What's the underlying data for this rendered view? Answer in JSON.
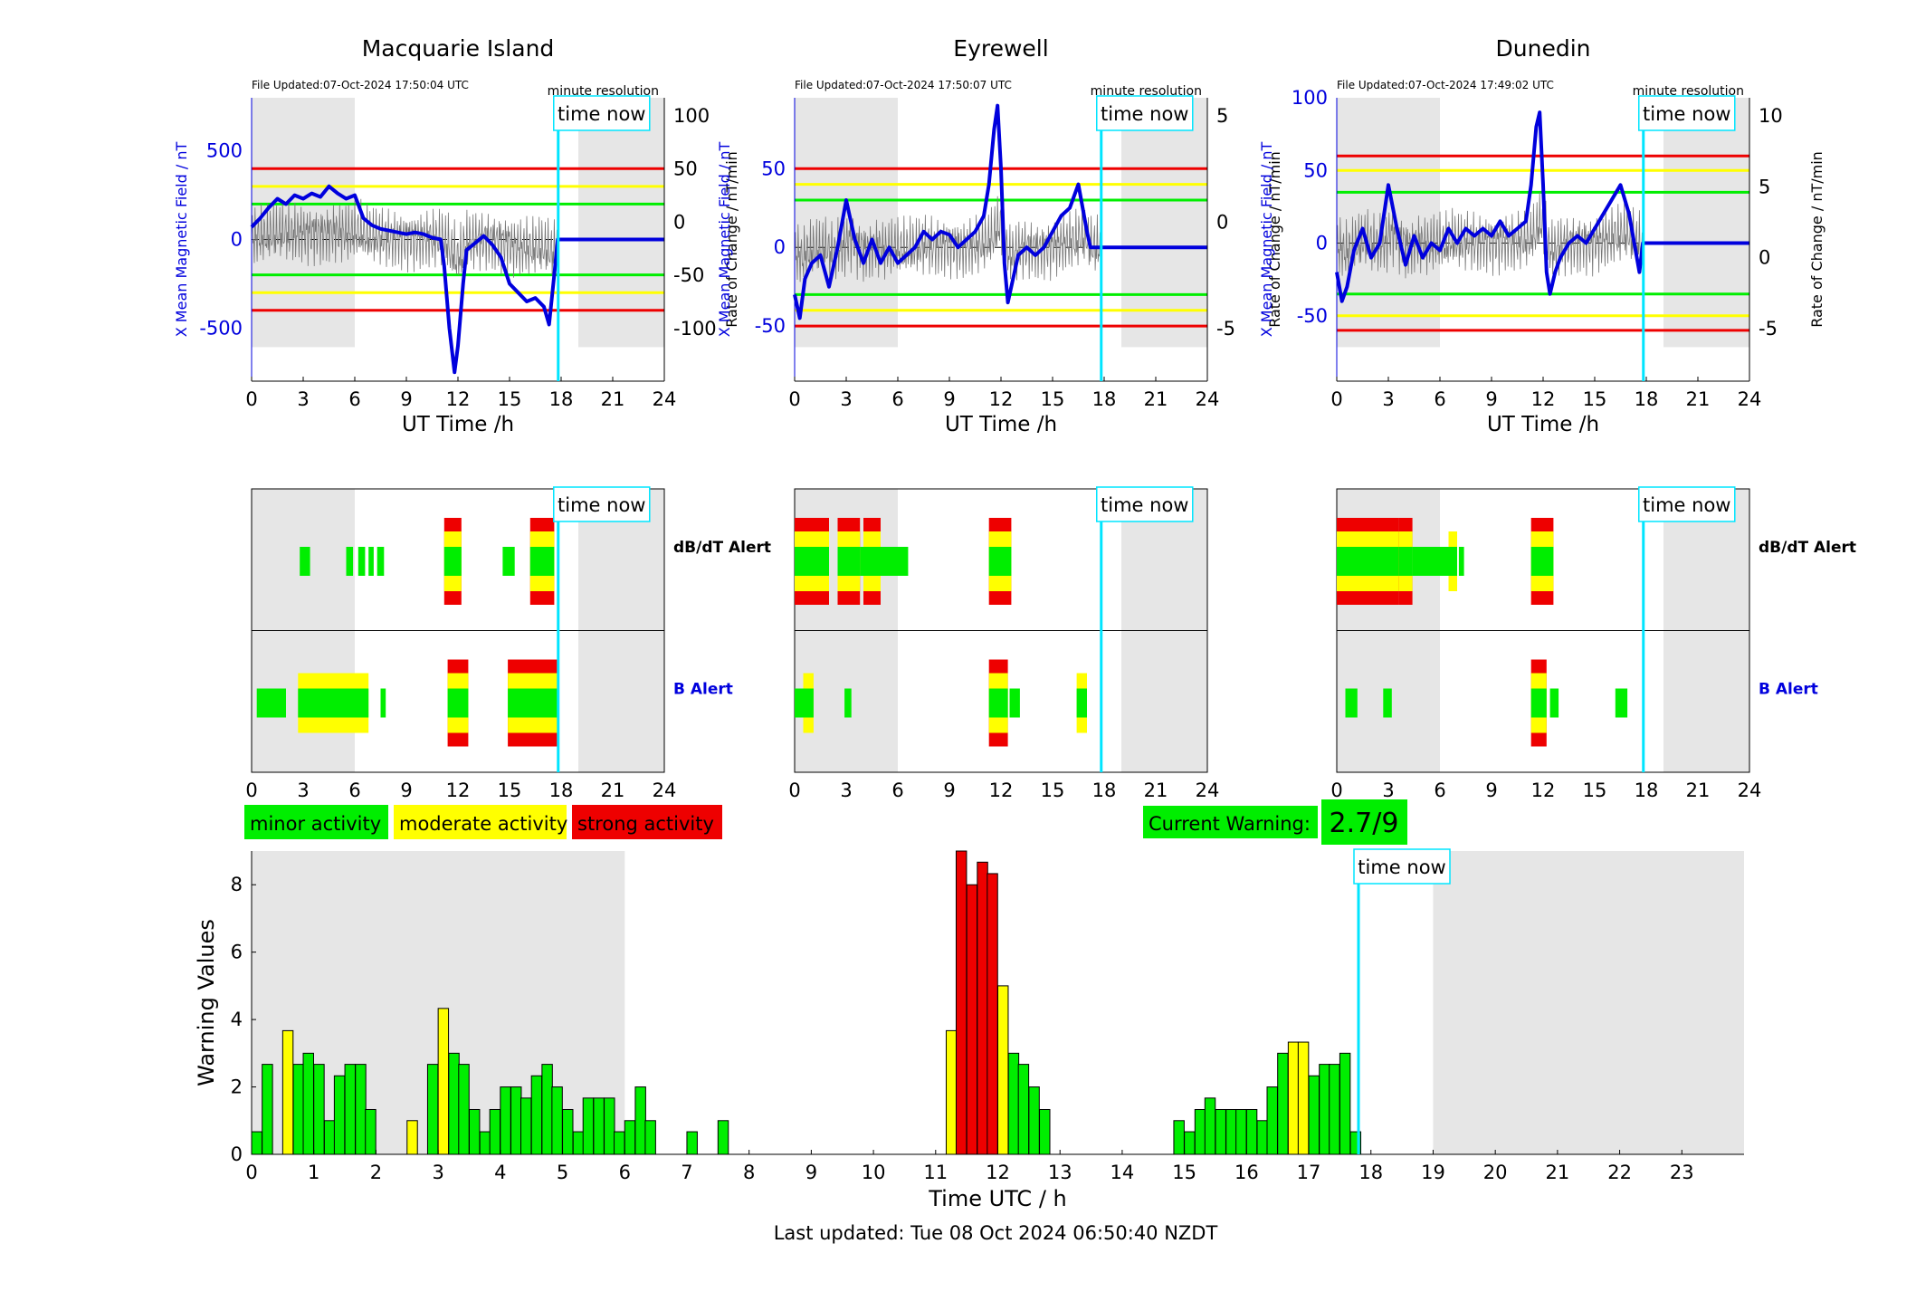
{
  "stations": [
    {
      "name": "Macquarie Island",
      "file_updated": "File Updated:07-Oct-2024 17:50:04 UTC",
      "resolution": "minute resolution",
      "x_label": "UT Time /h",
      "y_left_label": "X Mean Magnetic Field / nT",
      "y_right_label": "Rate of Change / nT/min",
      "y_left_ticks": [
        "500",
        "0",
        "-500"
      ],
      "y_right_ticks": [
        "100",
        "50",
        "0",
        "-50",
        "-100"
      ],
      "y_left_range": [
        -800,
        800
      ],
      "y_left_tick_values": [
        500,
        0,
        -500
      ],
      "thresholds": {
        "red": 400,
        "yellow": 300,
        "green": 200
      },
      "field_trace": [
        [
          0,
          70
        ],
        [
          0.5,
          120
        ],
        [
          1,
          180
        ],
        [
          1.5,
          230
        ],
        [
          2,
          200
        ],
        [
          2.5,
          250
        ],
        [
          3,
          230
        ],
        [
          3.5,
          260
        ],
        [
          4,
          240
        ],
        [
          4.5,
          300
        ],
        [
          5,
          260
        ],
        [
          5.5,
          230
        ],
        [
          6,
          250
        ],
        [
          6.5,
          120
        ],
        [
          7,
          80
        ],
        [
          7.5,
          60
        ],
        [
          8,
          50
        ],
        [
          8.5,
          40
        ],
        [
          9,
          30
        ],
        [
          9.5,
          40
        ],
        [
          10,
          30
        ],
        [
          10.5,
          10
        ],
        [
          11,
          0
        ],
        [
          11.2,
          -150
        ],
        [
          11.5,
          -500
        ],
        [
          11.8,
          -750
        ],
        [
          12,
          -600
        ],
        [
          12.3,
          -250
        ],
        [
          12.5,
          -60
        ],
        [
          13,
          -20
        ],
        [
          13.5,
          20
        ],
        [
          14,
          -30
        ],
        [
          14.5,
          -100
        ],
        [
          15,
          -250
        ],
        [
          15.5,
          -300
        ],
        [
          16,
          -350
        ],
        [
          16.5,
          -330
        ],
        [
          17,
          -380
        ],
        [
          17.3,
          -480
        ],
        [
          17.6,
          -200
        ],
        [
          17.8,
          0
        ],
        [
          24,
          0
        ]
      ],
      "activity_spans": [
        [
          0,
          6
        ],
        [
          19,
          24
        ]
      ],
      "time_now": 17.83,
      "dbdt_alerts": [
        {
          "start": 2.8,
          "end": 3.4,
          "level": 1
        },
        {
          "start": 5.5,
          "end": 5.9,
          "level": 1
        },
        {
          "start": 6.2,
          "end": 6.6,
          "level": 1
        },
        {
          "start": 6.8,
          "end": 7.1,
          "level": 1
        },
        {
          "start": 7.3,
          "end": 7.7,
          "level": 1
        },
        {
          "start": 11.2,
          "end": 12.2,
          "level": 3
        },
        {
          "start": 14.6,
          "end": 15.3,
          "level": 1
        },
        {
          "start": 16.2,
          "end": 17.6,
          "level": 3
        }
      ],
      "b_alerts": [
        {
          "start": 0.3,
          "end": 2.0,
          "level": 1
        },
        {
          "start": 2.7,
          "end": 6.8,
          "level": 2
        },
        {
          "start": 7.5,
          "end": 7.8,
          "level": 1
        },
        {
          "start": 11.4,
          "end": 12.6,
          "level": 3
        },
        {
          "start": 14.9,
          "end": 17.8,
          "level": 3
        }
      ],
      "dbdt_label": "dB/dT Alert",
      "b_label": "B Alert"
    },
    {
      "name": "Eyrewell",
      "file_updated": "File Updated:07-Oct-2024 17:50:07 UTC",
      "resolution": "minute resolution",
      "x_label": "UT Time /h",
      "y_left_label": "X Mean Magnetic Field / nT",
      "y_right_label": "Rate of Change / nT/min",
      "y_left_ticks": [
        "50",
        "0",
        "-50"
      ],
      "y_right_ticks": [
        "5",
        "0",
        "-5"
      ],
      "y_left_range": [
        -85,
        95
      ],
      "y_left_tick_values": [
        50,
        0,
        -50
      ],
      "thresholds": {
        "red": 50,
        "yellow": 40,
        "green": 30
      },
      "field_trace": [
        [
          0,
          -30
        ],
        [
          0.3,
          -45
        ],
        [
          0.6,
          -20
        ],
        [
          1,
          -10
        ],
        [
          1.5,
          -5
        ],
        [
          2,
          -25
        ],
        [
          2.5,
          0
        ],
        [
          3,
          30
        ],
        [
          3.5,
          5
        ],
        [
          4,
          -10
        ],
        [
          4.5,
          5
        ],
        [
          5,
          -10
        ],
        [
          5.5,
          0
        ],
        [
          6,
          -10
        ],
        [
          6.5,
          -5
        ],
        [
          7,
          0
        ],
        [
          7.5,
          10
        ],
        [
          8,
          5
        ],
        [
          8.5,
          10
        ],
        [
          9,
          8
        ],
        [
          9.5,
          0
        ],
        [
          10,
          5
        ],
        [
          10.5,
          10
        ],
        [
          11,
          20
        ],
        [
          11.3,
          40
        ],
        [
          11.6,
          75
        ],
        [
          11.8,
          90
        ],
        [
          12,
          50
        ],
        [
          12.2,
          -10
        ],
        [
          12.4,
          -35
        ],
        [
          12.7,
          -20
        ],
        [
          13,
          -5
        ],
        [
          13.5,
          0
        ],
        [
          14,
          -5
        ],
        [
          14.5,
          0
        ],
        [
          15,
          10
        ],
        [
          15.5,
          20
        ],
        [
          16,
          25
        ],
        [
          16.5,
          40
        ],
        [
          17,
          10
        ],
        [
          17.2,
          0
        ],
        [
          24,
          0
        ]
      ],
      "activity_spans": [
        [
          0,
          6
        ],
        [
          19,
          24
        ]
      ],
      "time_now": 17.83,
      "dbdt_alerts": [
        {
          "start": 0,
          "end": 2.0,
          "level": 3
        },
        {
          "start": 2.5,
          "end": 3.8,
          "level": 3
        },
        {
          "start": 3.8,
          "end": 4.2,
          "level": 1
        },
        {
          "start": 4.0,
          "end": 5.0,
          "level": 3
        },
        {
          "start": 5.0,
          "end": 6.6,
          "level": 1
        },
        {
          "start": 11.3,
          "end": 12.6,
          "level": 3
        }
      ],
      "b_alerts": [
        {
          "start": 0,
          "end": 0.5,
          "level": 1
        },
        {
          "start": 0.5,
          "end": 1.1,
          "level": 2
        },
        {
          "start": 2.9,
          "end": 3.3,
          "level": 1
        },
        {
          "start": 11.3,
          "end": 12.4,
          "level": 3
        },
        {
          "start": 12.5,
          "end": 13.1,
          "level": 1
        },
        {
          "start": 16.4,
          "end": 17.0,
          "level": 2
        }
      ],
      "dbdt_label": "dB/dT Alert",
      "b_label": "B Alert"
    },
    {
      "name": "Dunedin",
      "file_updated": "File Updated:07-Oct-2024 17:49:02 UTC",
      "resolution": "minute resolution",
      "x_label": "UT Time /h",
      "y_left_label": "X Mean Magnetic Field / nT",
      "y_right_label": "Rate of Change / nT/min",
      "y_left_ticks": [
        "100",
        "50",
        "0",
        "-50"
      ],
      "y_right_ticks": [
        "10",
        "5",
        "0",
        "-5"
      ],
      "y_left_range": [
        -95,
        100
      ],
      "y_left_tick_values": [
        100,
        50,
        0,
        -50
      ],
      "thresholds": {
        "red": 60,
        "yellow": 50,
        "green": 35
      },
      "field_trace": [
        [
          0,
          -20
        ],
        [
          0.3,
          -40
        ],
        [
          0.6,
          -30
        ],
        [
          1,
          -5
        ],
        [
          1.5,
          10
        ],
        [
          2,
          -10
        ],
        [
          2.5,
          0
        ],
        [
          3,
          40
        ],
        [
          3.5,
          10
        ],
        [
          4,
          -15
        ],
        [
          4.5,
          5
        ],
        [
          5,
          -10
        ],
        [
          5.5,
          0
        ],
        [
          6,
          -5
        ],
        [
          6.5,
          10
        ],
        [
          7,
          0
        ],
        [
          7.5,
          10
        ],
        [
          8,
          5
        ],
        [
          8.5,
          10
        ],
        [
          9,
          5
        ],
        [
          9.5,
          15
        ],
        [
          10,
          5
        ],
        [
          10.5,
          10
        ],
        [
          11,
          15
        ],
        [
          11.3,
          40
        ],
        [
          11.6,
          80
        ],
        [
          11.8,
          90
        ],
        [
          12,
          40
        ],
        [
          12.2,
          -20
        ],
        [
          12.4,
          -35
        ],
        [
          12.7,
          -20
        ],
        [
          13,
          -10
        ],
        [
          13.5,
          0
        ],
        [
          14,
          5
        ],
        [
          14.5,
          0
        ],
        [
          15,
          10
        ],
        [
          15.5,
          20
        ],
        [
          16,
          30
        ],
        [
          16.5,
          40
        ],
        [
          17,
          20
        ],
        [
          17.3,
          0
        ],
        [
          17.6,
          -20
        ],
        [
          17.8,
          0
        ],
        [
          24,
          0
        ]
      ],
      "activity_spans": [
        [
          0,
          6
        ],
        [
          19,
          24
        ]
      ],
      "time_now": 17.83,
      "dbdt_alerts": [
        {
          "start": 0,
          "end": 2.5,
          "level": 3
        },
        {
          "start": 2.5,
          "end": 3.6,
          "level": 3
        },
        {
          "start": 3.6,
          "end": 4.4,
          "level": 3
        },
        {
          "start": 4.4,
          "end": 6.5,
          "level": 1
        },
        {
          "start": 6.5,
          "end": 7.0,
          "level": 2
        },
        {
          "start": 7.1,
          "end": 7.4,
          "level": 1
        },
        {
          "start": 11.3,
          "end": 12.6,
          "level": 3
        }
      ],
      "b_alerts": [
        {
          "start": 0.5,
          "end": 1.2,
          "level": 1
        },
        {
          "start": 2.7,
          "end": 3.2,
          "level": 1
        },
        {
          "start": 11.3,
          "end": 12.2,
          "level": 3
        },
        {
          "start": 12.4,
          "end": 12.9,
          "level": 1
        },
        {
          "start": 16.2,
          "end": 16.9,
          "level": 1
        }
      ],
      "dbdt_label": "dB/dT Alert",
      "b_label": "B Alert"
    }
  ],
  "time_now_label": "time now",
  "x_ticks_small": [
    "0",
    "3",
    "6",
    "9",
    "12",
    "15",
    "18",
    "21",
    "24"
  ],
  "legend": [
    {
      "label": "minor activity",
      "color": "#00ee00"
    },
    {
      "label": "moderate activity",
      "color": "#ffff00"
    },
    {
      "label": "strong activity",
      "color": "#ee0000"
    }
  ],
  "current_warning": {
    "label": "Current Warning:",
    "value": "2.7/9",
    "color": "#00ee00"
  },
  "chart_data": {
    "type": "bar",
    "title": "",
    "xlabel": "Time UTC / h",
    "ylabel": "Warning Values",
    "xlim": [
      0,
      24
    ],
    "ylim": [
      0,
      9
    ],
    "x_ticks": [
      "0",
      "1",
      "2",
      "3",
      "4",
      "5",
      "6",
      "7",
      "8",
      "9",
      "10",
      "11",
      "12",
      "13",
      "14",
      "15",
      "16",
      "17",
      "18",
      "19",
      "20",
      "21",
      "22",
      "23"
    ],
    "y_ticks": [
      "0",
      "2",
      "4",
      "6",
      "8"
    ],
    "shaded_spans": [
      [
        0,
        6
      ],
      [
        19,
        24
      ]
    ],
    "time_now": 17.8,
    "bin_width_h": 0.1667,
    "bins": [
      {
        "t": 0.0,
        "v": 0.67,
        "c": "g"
      },
      {
        "t": 0.17,
        "v": 2.67,
        "c": "g"
      },
      {
        "t": 0.5,
        "v": 3.67,
        "c": "y"
      },
      {
        "t": 0.67,
        "v": 2.67,
        "c": "g"
      },
      {
        "t": 0.83,
        "v": 3.0,
        "c": "g"
      },
      {
        "t": 1.0,
        "v": 2.67,
        "c": "g"
      },
      {
        "t": 1.17,
        "v": 1.0,
        "c": "g"
      },
      {
        "t": 1.33,
        "v": 2.33,
        "c": "g"
      },
      {
        "t": 1.5,
        "v": 2.67,
        "c": "g"
      },
      {
        "t": 1.67,
        "v": 2.67,
        "c": "g"
      },
      {
        "t": 1.83,
        "v": 1.33,
        "c": "g"
      },
      {
        "t": 2.5,
        "v": 1.0,
        "c": "y"
      },
      {
        "t": 2.83,
        "v": 2.67,
        "c": "g"
      },
      {
        "t": 3.0,
        "v": 4.33,
        "c": "y"
      },
      {
        "t": 3.17,
        "v": 3.0,
        "c": "g"
      },
      {
        "t": 3.33,
        "v": 2.67,
        "c": "g"
      },
      {
        "t": 3.5,
        "v": 1.33,
        "c": "g"
      },
      {
        "t": 3.67,
        "v": 0.67,
        "c": "g"
      },
      {
        "t": 3.83,
        "v": 1.33,
        "c": "g"
      },
      {
        "t": 4.0,
        "v": 2.0,
        "c": "g"
      },
      {
        "t": 4.17,
        "v": 2.0,
        "c": "g"
      },
      {
        "t": 4.33,
        "v": 1.67,
        "c": "g"
      },
      {
        "t": 4.5,
        "v": 2.33,
        "c": "g"
      },
      {
        "t": 4.67,
        "v": 2.67,
        "c": "g"
      },
      {
        "t": 4.83,
        "v": 2.0,
        "c": "g"
      },
      {
        "t": 5.0,
        "v": 1.33,
        "c": "g"
      },
      {
        "t": 5.17,
        "v": 0.67,
        "c": "g"
      },
      {
        "t": 5.33,
        "v": 1.67,
        "c": "g"
      },
      {
        "t": 5.5,
        "v": 1.67,
        "c": "g"
      },
      {
        "t": 5.67,
        "v": 1.67,
        "c": "g"
      },
      {
        "t": 5.83,
        "v": 0.67,
        "c": "g"
      },
      {
        "t": 6.0,
        "v": 1.0,
        "c": "g"
      },
      {
        "t": 6.17,
        "v": 2.0,
        "c": "g"
      },
      {
        "t": 6.33,
        "v": 1.0,
        "c": "g"
      },
      {
        "t": 7.0,
        "v": 0.67,
        "c": "g"
      },
      {
        "t": 7.5,
        "v": 1.0,
        "c": "g"
      },
      {
        "t": 11.17,
        "v": 3.67,
        "c": "y"
      },
      {
        "t": 11.33,
        "v": 9.0,
        "c": "r"
      },
      {
        "t": 11.5,
        "v": 8.0,
        "c": "r"
      },
      {
        "t": 11.67,
        "v": 8.67,
        "c": "r"
      },
      {
        "t": 11.83,
        "v": 8.33,
        "c": "r"
      },
      {
        "t": 12.0,
        "v": 5.0,
        "c": "y"
      },
      {
        "t": 12.17,
        "v": 3.0,
        "c": "g"
      },
      {
        "t": 12.33,
        "v": 2.67,
        "c": "g"
      },
      {
        "t": 12.5,
        "v": 2.0,
        "c": "g"
      },
      {
        "t": 12.67,
        "v": 1.33,
        "c": "g"
      },
      {
        "t": 14.83,
        "v": 1.0,
        "c": "g"
      },
      {
        "t": 15.0,
        "v": 0.67,
        "c": "g"
      },
      {
        "t": 15.17,
        "v": 1.33,
        "c": "g"
      },
      {
        "t": 15.33,
        "v": 1.67,
        "c": "g"
      },
      {
        "t": 15.5,
        "v": 1.33,
        "c": "g"
      },
      {
        "t": 15.67,
        "v": 1.33,
        "c": "g"
      },
      {
        "t": 15.83,
        "v": 1.33,
        "c": "g"
      },
      {
        "t": 16.0,
        "v": 1.33,
        "c": "g"
      },
      {
        "t": 16.17,
        "v": 1.0,
        "c": "g"
      },
      {
        "t": 16.33,
        "v": 2.0,
        "c": "g"
      },
      {
        "t": 16.5,
        "v": 3.0,
        "c": "g"
      },
      {
        "t": 16.67,
        "v": 3.33,
        "c": "y"
      },
      {
        "t": 16.83,
        "v": 3.33,
        "c": "y"
      },
      {
        "t": 17.0,
        "v": 2.33,
        "c": "g"
      },
      {
        "t": 17.17,
        "v": 2.67,
        "c": "g"
      },
      {
        "t": 17.33,
        "v": 2.67,
        "c": "g"
      },
      {
        "t": 17.5,
        "v": 3.0,
        "c": "g"
      },
      {
        "t": 17.67,
        "v": 0.67,
        "c": "g"
      }
    ]
  },
  "last_updated": "Last updated: Tue 08 Oct 2024 06:50:40 NZDT",
  "colors": {
    "green": "#00ee00",
    "yellow": "#ffff00",
    "red": "#ee0000",
    "cyan": "#00e5ff",
    "blue": "#0000dd",
    "shade": "#e6e6e6"
  }
}
